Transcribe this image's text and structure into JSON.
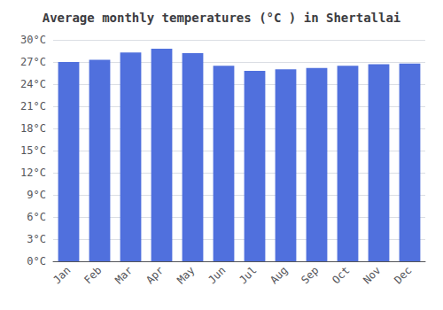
{
  "chart_data": {
    "type": "bar",
    "title": "Average monthly temperatures (°C ) in Shertallai",
    "categories": [
      "Jan",
      "Feb",
      "Mar",
      "Apr",
      "May",
      "Jun",
      "Jul",
      "Aug",
      "Sep",
      "Oct",
      "Nov",
      "Dec"
    ],
    "values": [
      27.0,
      27.3,
      28.3,
      28.8,
      28.2,
      26.5,
      25.8,
      26.0,
      26.2,
      26.5,
      26.7,
      26.8
    ],
    "ylim": [
      0,
      30
    ],
    "yticks": [
      {
        "value": 0,
        "label": "0°C"
      },
      {
        "value": 3,
        "label": "3°C"
      },
      {
        "value": 6,
        "label": "6°C"
      },
      {
        "value": 9,
        "label": "9°C"
      },
      {
        "value": 12,
        "label": "12°C"
      },
      {
        "value": 15,
        "label": "15°C"
      },
      {
        "value": 18,
        "label": "18°C"
      },
      {
        "value": 21,
        "label": "21°C"
      },
      {
        "value": 24,
        "label": "24°C"
      },
      {
        "value": 27,
        "label": "27°C"
      },
      {
        "value": 30,
        "label": "30°C"
      }
    ],
    "grid": true
  }
}
